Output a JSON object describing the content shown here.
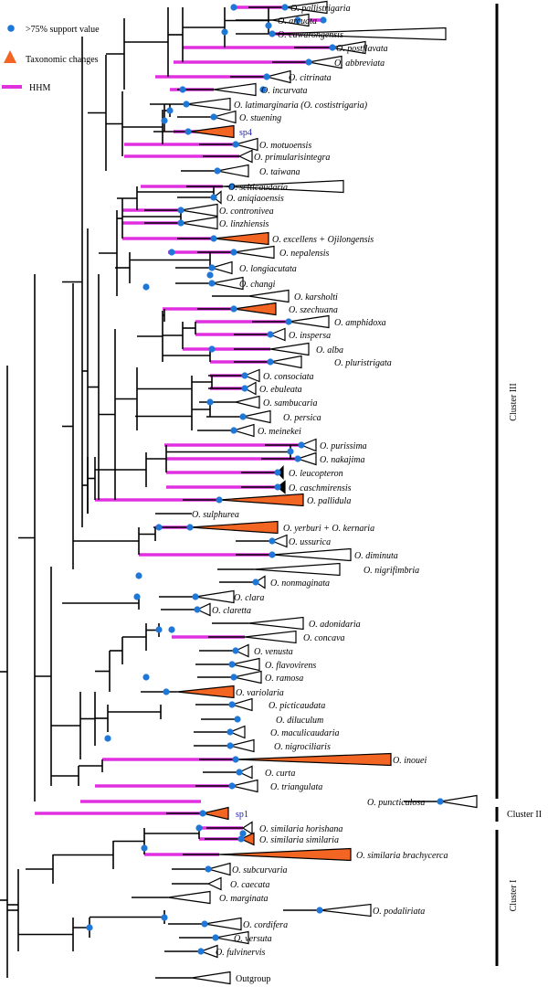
{
  "colors": {
    "hhm": "#e030e0",
    "support": "#1f77d8",
    "taxonomic": "#f26522",
    "line": "#000000"
  },
  "legend": {
    "support": ">75% support value",
    "taxonomic": "Taxonomic changes",
    "hhm": "HHM"
  },
  "clusters": [
    {
      "id": "cluster-3",
      "label": "Cluster III"
    },
    {
      "id": "cluster-2",
      "label": "Cluster II"
    },
    {
      "id": "cluster-1",
      "label": "Cluster I"
    }
  ],
  "taxa": [
    {
      "label": "O. pallistrigaria",
      "clade": "open"
    },
    {
      "label": "O. arcuata",
      "clade": "open"
    },
    {
      "label": "O. cawarongensis",
      "clade": "open"
    },
    {
      "label": "O. postflavata",
      "clade": "open"
    },
    {
      "label": "O. abbreviata",
      "clade": "open"
    },
    {
      "label": "O. citrinata",
      "clade": "open"
    },
    {
      "label": "O. incurvata",
      "clade": "open"
    },
    {
      "label": "O. latimarginaria (O. costistrigaria)",
      "clade": "open"
    },
    {
      "label": "O. stuening",
      "clade": "open"
    },
    {
      "label": "sp4",
      "clade": "taxonomic"
    },
    {
      "label": "O. motuoensis",
      "clade": "open"
    },
    {
      "label": "O. primularisintegra",
      "clade": "open"
    },
    {
      "label": "O. taiwana",
      "clade": "open"
    },
    {
      "label": "O. sciticaudaria",
      "clade": "open"
    },
    {
      "label": "O. aniqiaoensis",
      "clade": "open"
    },
    {
      "label": "O. contronivea",
      "clade": "open"
    },
    {
      "label": "O. linzhiensis",
      "clade": "open"
    },
    {
      "label": "O. excellens + Ojilongensis",
      "clade": "taxonomic"
    },
    {
      "label": "O. nepalensis",
      "clade": "open"
    },
    {
      "label": "O. longiacutata",
      "clade": "open"
    },
    {
      "label": "O. changi",
      "clade": "open"
    },
    {
      "label": "O. karsholti",
      "clade": "open"
    },
    {
      "label": "O. szechuana",
      "clade": "taxonomic"
    },
    {
      "label": "O. amphidoxa",
      "clade": "open"
    },
    {
      "label": "O. inspersa",
      "clade": "open"
    },
    {
      "label": "O. alba",
      "clade": "open"
    },
    {
      "label": "O. pluristrigata",
      "clade": "open"
    },
    {
      "label": "O. consociata",
      "clade": "open"
    },
    {
      "label": "O. ebuleata",
      "clade": "open"
    },
    {
      "label": "O. sambucaria",
      "clade": "open"
    },
    {
      "label": "O. persica",
      "clade": "open"
    },
    {
      "label": "O. meinekei",
      "clade": "open"
    },
    {
      "label": "O. purissima",
      "clade": "open"
    },
    {
      "label": "O. nakajima",
      "clade": "open"
    },
    {
      "label": "O. leucopteron",
      "clade": "black"
    },
    {
      "label": "O. caschmirensis",
      "clade": "black"
    },
    {
      "label": "O. pallidula",
      "clade": "taxonomic"
    },
    {
      "label": "O. sulphurea",
      "clade": "none"
    },
    {
      "label": "O. yerburi + O. kernaria",
      "clade": "taxonomic"
    },
    {
      "label": "O. ussurica",
      "clade": "open"
    },
    {
      "label": "O. diminuta",
      "clade": "open"
    },
    {
      "label": "O. nigrifimbria",
      "clade": "open"
    },
    {
      "label": "O. nonmaginata",
      "clade": "open"
    },
    {
      "label": "O. clara",
      "clade": "open"
    },
    {
      "label": "O. claretta",
      "clade": "open"
    },
    {
      "label": "O. adonidaria",
      "clade": "open"
    },
    {
      "label": "O. concava",
      "clade": "open"
    },
    {
      "label": "O. venusta",
      "clade": "open"
    },
    {
      "label": "O. flavovirens",
      "clade": "open"
    },
    {
      "label": "O. ramosa",
      "clade": "open"
    },
    {
      "label": "O. variolaria",
      "clade": "taxonomic"
    },
    {
      "label": "O. picticaudata",
      "clade": "open"
    },
    {
      "label": "O. diluculum",
      "clade": "none"
    },
    {
      "label": "O. maculicaudaria",
      "clade": "open"
    },
    {
      "label": "O. nigrociliaris",
      "clade": "open"
    },
    {
      "label": "O. inouei",
      "clade": "taxonomic"
    },
    {
      "label": "O. curta",
      "clade": "open"
    },
    {
      "label": "O. triangulata",
      "clade": "open"
    },
    {
      "label": "O. puncticulosa",
      "clade": "open"
    },
    {
      "label": "sp1",
      "clade": "taxonomic"
    },
    {
      "label": "O. similaria horishana",
      "clade": "open"
    },
    {
      "label": "O. similaria similaria",
      "clade": "taxonomic"
    },
    {
      "label": "O. similaria brachycerca",
      "clade": "taxonomic"
    },
    {
      "label": "O. subcurvaria",
      "clade": "open"
    },
    {
      "label": "O. caecata",
      "clade": "open"
    },
    {
      "label": "O. marginata",
      "clade": "open"
    },
    {
      "label": "O. podaliriata",
      "clade": "open"
    },
    {
      "label": "O. cordifera",
      "clade": "open"
    },
    {
      "label": "O. versuta",
      "clade": "open"
    },
    {
      "label": "O. fulvinervis",
      "clade": "open"
    },
    {
      "label": "Outgroup",
      "clade": "open"
    }
  ]
}
